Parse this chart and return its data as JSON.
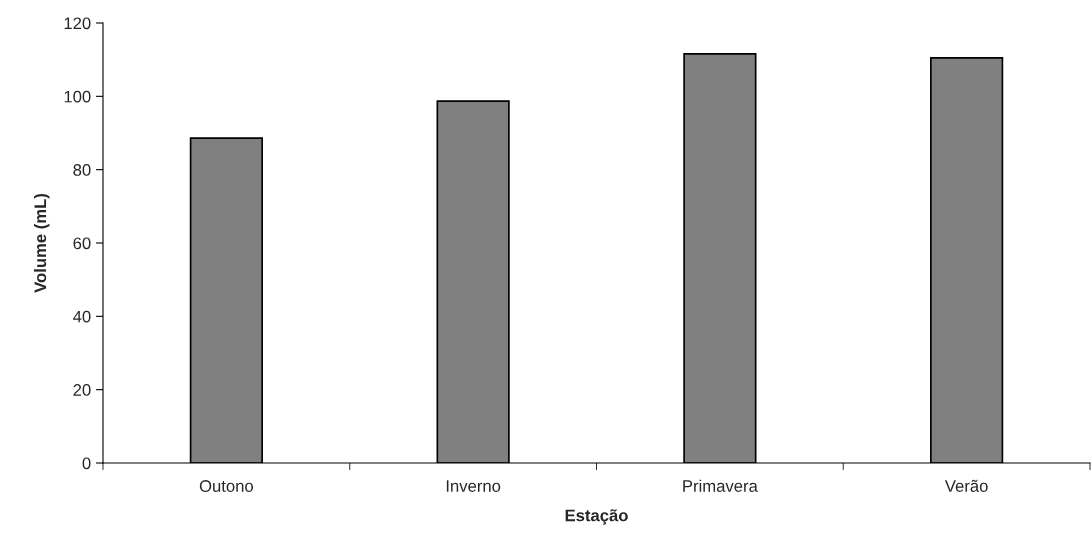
{
  "chart_data": {
    "type": "bar",
    "xlabel": "Estação",
    "ylabel": "Volume (mL)",
    "categories": [
      "Outono",
      "Inverno",
      "Primavera",
      "Verão"
    ],
    "values": [
      88.6,
      98.7,
      111.6,
      110.5
    ],
    "color": "#808080",
    "ylim": [
      0,
      120
    ],
    "yticks": [
      0,
      20,
      40,
      60,
      80,
      100,
      120
    ],
    "grid": false,
    "legend": false
  }
}
